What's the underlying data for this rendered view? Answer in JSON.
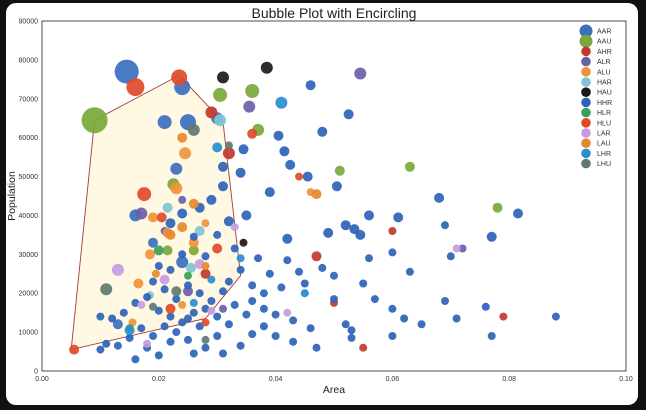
{
  "chart_data": {
    "type": "scatter",
    "title": "Bubble Plot with Encircling",
    "xlabel": "Area",
    "ylabel": "Population",
    "xlim": [
      0,
      0.1
    ],
    "ylim": [
      0,
      90000
    ],
    "xticks": [
      "0.00",
      "0.02",
      "0.04",
      "0.06",
      "0.08",
      "0.10"
    ],
    "yticks": [
      "0",
      "10000",
      "20000",
      "30000",
      "40000",
      "50000",
      "60000",
      "70000",
      "80000",
      "90000"
    ],
    "grid": false,
    "legend_position": "top-right",
    "encircle": {
      "fill": "#fff8e0",
      "edge": "#a33a3a",
      "hull": [
        [
          0.005,
          5500
        ],
        [
          0.009,
          64500
        ],
        [
          0.0235,
          76000
        ],
        [
          0.031,
          64000
        ],
        [
          0.034,
          24500
        ],
        [
          0.028,
          13500
        ],
        [
          0.005,
          5500
        ]
      ]
    },
    "series": [
      {
        "name": "AAR",
        "color": "#3a6fbf",
        "points": [
          [
            0.0145,
            77000,
            12
          ],
          [
            0.021,
            64000,
            7
          ],
          [
            0.024,
            73000,
            8
          ],
          [
            0.025,
            64000,
            8
          ],
          [
            0.023,
            52000,
            6
          ],
          [
            0.016,
            40000,
            6
          ],
          [
            0.019,
            33000,
            5
          ],
          [
            0.024,
            28000,
            6
          ],
          [
            0.03,
            65000,
            6
          ],
          [
            0.013,
            12000,
            5
          ]
        ]
      },
      {
        "name": "AAU",
        "color": "#7aa83a",
        "points": [
          [
            0.009,
            64500,
            13
          ],
          [
            0.0305,
            71000,
            7
          ],
          [
            0.036,
            72000,
            7
          ],
          [
            0.037,
            62000,
            6
          ],
          [
            0.0225,
            48000,
            6
          ],
          [
            0.063,
            52500,
            5
          ],
          [
            0.078,
            42000,
            5
          ],
          [
            0.051,
            51500,
            5
          ],
          [
            0.026,
            31000,
            5
          ],
          [
            0.0215,
            31000,
            5
          ]
        ]
      },
      {
        "name": "AHR",
        "color": "#c0392b",
        "points": [
          [
            0.029,
            66500,
            6
          ],
          [
            0.032,
            56000,
            6
          ],
          [
            0.028,
            25000,
            5
          ],
          [
            0.047,
            29500,
            5
          ],
          [
            0.05,
            17500,
            4
          ],
          [
            0.06,
            36000,
            4
          ],
          [
            0.079,
            14000,
            4
          ],
          [
            0.055,
            6000,
            4
          ]
        ]
      },
      {
        "name": "ALR",
        "color": "#6b5fa8",
        "points": [
          [
            0.0545,
            76500,
            6
          ],
          [
            0.0355,
            68000,
            6
          ],
          [
            0.017,
            40500,
            6
          ],
          [
            0.025,
            20500,
            5
          ],
          [
            0.021,
            36000,
            4
          ],
          [
            0.024,
            44000,
            4
          ],
          [
            0.072,
            31500,
            4
          ],
          [
            0.031,
            16000,
            4
          ]
        ]
      },
      {
        "name": "ALU",
        "color": "#f0923b",
        "points": [
          [
            0.0245,
            56000,
            6
          ],
          [
            0.023,
            47000,
            6
          ],
          [
            0.019,
            39500,
            5
          ],
          [
            0.0215,
            35500,
            5
          ],
          [
            0.026,
            33000,
            5
          ],
          [
            0.0185,
            30000,
            5
          ],
          [
            0.0165,
            22500,
            5
          ],
          [
            0.024,
            17000,
            4
          ],
          [
            0.0155,
            12500,
            4
          ],
          [
            0.028,
            38000,
            4
          ],
          [
            0.046,
            46000,
            4
          ]
        ]
      },
      {
        "name": "HAR",
        "color": "#7fc4d4",
        "points": [
          [
            0.0305,
            64500,
            6
          ],
          [
            0.0215,
            42000,
            5
          ],
          [
            0.027,
            36000,
            5
          ],
          [
            0.0255,
            26500,
            5
          ],
          [
            0.0185,
            19500,
            4
          ],
          [
            0.045,
            20000,
            4
          ]
        ]
      },
      {
        "name": "HAU",
        "color": "#1a1a1a",
        "points": [
          [
            0.0385,
            78000,
            6
          ],
          [
            0.031,
            75500,
            6
          ],
          [
            0.0345,
            33000,
            4
          ]
        ]
      },
      {
        "name": "HHR",
        "color": "#2e63b8",
        "points": [
          [
            0.046,
            73500,
            5
          ],
          [
            0.0525,
            66000,
            5
          ],
          [
            0.0405,
            60500,
            5
          ],
          [
            0.048,
            61500,
            5
          ],
          [
            0.0415,
            56500,
            5
          ],
          [
            0.0345,
            57000,
            5
          ],
          [
            0.0425,
            53000,
            5
          ],
          [
            0.0455,
            50000,
            5
          ],
          [
            0.0505,
            47500,
            5
          ],
          [
            0.034,
            51000,
            5
          ],
          [
            0.039,
            46000,
            5
          ],
          [
            0.031,
            52500,
            5
          ],
          [
            0.031,
            47500,
            5
          ],
          [
            0.029,
            44000,
            5
          ],
          [
            0.027,
            42000,
            5
          ],
          [
            0.024,
            40500,
            5
          ],
          [
            0.022,
            38000,
            5
          ],
          [
            0.032,
            38500,
            5
          ],
          [
            0.035,
            40000,
            5
          ],
          [
            0.042,
            34000,
            5
          ],
          [
            0.049,
            35500,
            5
          ],
          [
            0.052,
            37500,
            5
          ],
          [
            0.0535,
            36500,
            5
          ],
          [
            0.0545,
            35000,
            5
          ],
          [
            0.056,
            40000,
            5
          ],
          [
            0.061,
            39500,
            5
          ],
          [
            0.068,
            44500,
            5
          ],
          [
            0.0815,
            40500,
            5
          ],
          [
            0.077,
            34500,
            5
          ],
          [
            0.069,
            37500,
            4
          ],
          [
            0.063,
            25500,
            4
          ],
          [
            0.06,
            30500,
            4
          ],
          [
            0.056,
            29000,
            4
          ],
          [
            0.044,
            25500,
            4
          ],
          [
            0.048,
            26500,
            4
          ],
          [
            0.05,
            24500,
            4
          ],
          [
            0.045,
            22500,
            4
          ],
          [
            0.041,
            21500,
            4
          ],
          [
            0.038,
            20000,
            4
          ],
          [
            0.036,
            18000,
            4
          ],
          [
            0.04,
            14500,
            4
          ],
          [
            0.043,
            13000,
            4
          ],
          [
            0.046,
            11000,
            4
          ],
          [
            0.052,
            12000,
            4
          ],
          [
            0.053,
            10500,
            4
          ],
          [
            0.057,
            18500,
            4
          ],
          [
            0.06,
            16000,
            4
          ],
          [
            0.062,
            13500,
            4
          ],
          [
            0.065,
            12000,
            4
          ],
          [
            0.069,
            18000,
            4
          ],
          [
            0.071,
            13500,
            4
          ],
          [
            0.076,
            16500,
            4
          ],
          [
            0.088,
            14000,
            4
          ],
          [
            0.077,
            9000,
            4
          ],
          [
            0.06,
            9000,
            4
          ],
          [
            0.053,
            8500,
            4
          ],
          [
            0.047,
            6000,
            4
          ],
          [
            0.07,
            29500,
            4
          ],
          [
            0.055,
            22500,
            4
          ],
          [
            0.05,
            18500,
            4
          ],
          [
            0.042,
            28500,
            4
          ],
          [
            0.037,
            29000,
            4
          ],
          [
            0.039,
            25000,
            4
          ],
          [
            0.033,
            31500,
            4
          ],
          [
            0.03,
            35000,
            4
          ],
          [
            0.028,
            29500,
            4
          ],
          [
            0.026,
            34500,
            4
          ],
          [
            0.024,
            30000,
            4
          ],
          [
            0.022,
            26000,
            4
          ],
          [
            0.02,
            27000,
            4
          ],
          [
            0.019,
            23000,
            4
          ],
          [
            0.018,
            19000,
            4
          ],
          [
            0.021,
            21000,
            4
          ],
          [
            0.023,
            18500,
            4
          ],
          [
            0.025,
            22000,
            4
          ],
          [
            0.027,
            20000,
            4
          ],
          [
            0.029,
            18000,
            4
          ],
          [
            0.031,
            20500,
            4
          ],
          [
            0.033,
            17000,
            4
          ],
          [
            0.035,
            14500,
            4
          ],
          [
            0.032,
            12000,
            4
          ],
          [
            0.03,
            9000,
            4
          ],
          [
            0.027,
            11500,
            4
          ],
          [
            0.025,
            13500,
            4
          ],
          [
            0.023,
            10000,
            4
          ],
          [
            0.021,
            11500,
            4
          ],
          [
            0.019,
            9000,
            4
          ],
          [
            0.017,
            11000,
            4
          ],
          [
            0.015,
            8500,
            4
          ],
          [
            0.013,
            6500,
            4
          ],
          [
            0.011,
            7000,
            4
          ],
          [
            0.01,
            5500,
            4
          ],
          [
            0.018,
            6000,
            4
          ],
          [
            0.022,
            7500,
            4
          ],
          [
            0.025,
            8000,
            4
          ],
          [
            0.028,
            6000,
            4
          ],
          [
            0.031,
            4500,
            4
          ],
          [
            0.034,
            6500,
            4
          ],
          [
            0.036,
            9500,
            4
          ],
          [
            0.038,
            11500,
            4
          ],
          [
            0.04,
            9000,
            4
          ],
          [
            0.043,
            7500,
            4
          ],
          [
            0.026,
            4500,
            4
          ],
          [
            0.02,
            4000,
            4
          ],
          [
            0.016,
            3000,
            4
          ],
          [
            0.014,
            15000,
            4
          ],
          [
            0.012,
            13500,
            4
          ],
          [
            0.01,
            14000,
            4
          ],
          [
            0.016,
            17500,
            4
          ],
          [
            0.02,
            15500,
            4
          ],
          [
            0.022,
            14000,
            4
          ],
          [
            0.024,
            12500,
            4
          ],
          [
            0.026,
            15000,
            4
          ],
          [
            0.028,
            16000,
            4
          ],
          [
            0.03,
            14000,
            4
          ],
          [
            0.032,
            23000,
            4
          ],
          [
            0.034,
            26000,
            4
          ],
          [
            0.036,
            22000,
            4
          ],
          [
            0.038,
            16000,
            4
          ]
        ]
      },
      {
        "name": "HLR",
        "color": "#3aa05a",
        "points": [
          [
            0.02,
            31000,
            5
          ],
          [
            0.025,
            24500,
            4
          ],
          [
            0.015,
            11000,
            4
          ]
        ]
      },
      {
        "name": "HLU",
        "color": "#e04a2a",
        "points": [
          [
            0.0235,
            75500,
            8
          ],
          [
            0.016,
            73000,
            9
          ],
          [
            0.0175,
            45500,
            7
          ],
          [
            0.0205,
            39500,
            5
          ],
          [
            0.03,
            31500,
            5
          ],
          [
            0.022,
            16000,
            5
          ],
          [
            0.028,
            12500,
            4
          ],
          [
            0.036,
            61000,
            5
          ],
          [
            0.044,
            50000,
            4
          ],
          [
            0.0055,
            5500,
            5
          ]
        ]
      },
      {
        "name": "LAR",
        "color": "#c59be0",
        "points": [
          [
            0.013,
            26000,
            6
          ],
          [
            0.021,
            23500,
            5
          ],
          [
            0.027,
            27500,
            5
          ],
          [
            0.017,
            17000,
            4
          ],
          [
            0.018,
            7000,
            4
          ],
          [
            0.033,
            37000,
            4
          ],
          [
            0.071,
            31500,
            4
          ],
          [
            0.042,
            15000,
            4
          ],
          [
            0.029,
            15500,
            4
          ]
        ]
      },
      {
        "name": "LAU",
        "color": "#e6892e",
        "points": [
          [
            0.024,
            60000,
            5
          ],
          [
            0.026,
            43000,
            5
          ],
          [
            0.022,
            35000,
            5
          ],
          [
            0.024,
            37000,
            5
          ],
          [
            0.028,
            27000,
            4
          ],
          [
            0.0195,
            25000,
            4
          ],
          [
            0.047,
            45500,
            5
          ]
        ]
      },
      {
        "name": "LHR",
        "color": "#2a8dd4",
        "points": [
          [
            0.041,
            69000,
            6
          ],
          [
            0.03,
            57500,
            5
          ],
          [
            0.015,
            10500,
            5
          ],
          [
            0.029,
            23500,
            4
          ],
          [
            0.026,
            17500,
            4
          ],
          [
            0.045,
            20000,
            4
          ],
          [
            0.034,
            29000,
            4
          ]
        ]
      },
      {
        "name": "LHU",
        "color": "#5f7a70",
        "points": [
          [
            0.026,
            62000,
            6
          ],
          [
            0.011,
            21000,
            6
          ],
          [
            0.023,
            20500,
            5
          ],
          [
            0.028,
            8000,
            4
          ],
          [
            0.019,
            16500,
            4
          ],
          [
            0.032,
            58000,
            4
          ]
        ]
      }
    ]
  }
}
